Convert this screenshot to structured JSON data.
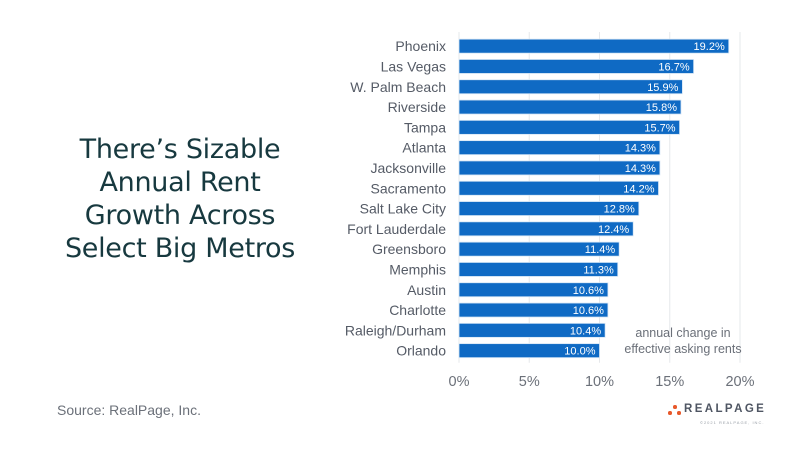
{
  "title_lines": [
    "There’s Sizable",
    "Annual Rent",
    "Growth Across",
    "Select Big Metros"
  ],
  "source": "Source: RealPage, Inc.",
  "logo": {
    "name": "REALPAGE",
    "copyright": "©2021 REALPAGE, INC.",
    "dot_color": "#e8582a"
  },
  "chart_data": {
    "type": "bar",
    "orientation": "horizontal",
    "title": "There’s Sizable Annual Rent Growth Across Select Big Metros",
    "categories": [
      "Phoenix",
      "Las Vegas",
      "W. Palm Beach",
      "Riverside",
      "Tampa",
      "Atlanta",
      "Jacksonville",
      "Sacramento",
      "Salt Lake City",
      "Fort Lauderdale",
      "Greensboro",
      "Memphis",
      "Austin",
      "Charlotte",
      "Raleigh/Durham",
      "Orlando"
    ],
    "values": [
      19.2,
      16.7,
      15.9,
      15.8,
      15.7,
      14.3,
      14.3,
      14.2,
      12.8,
      12.4,
      11.4,
      11.3,
      10.6,
      10.6,
      10.4,
      10.0
    ],
    "data_labels": [
      "19.2%",
      "16.7%",
      "15.9%",
      "15.8%",
      "15.7%",
      "14.3%",
      "14.3%",
      "14.2%",
      "12.8%",
      "12.4%",
      "11.4%",
      "11.3%",
      "10.6%",
      "10.6%",
      "10.4%",
      "10.0%"
    ],
    "xlabel": "",
    "ylabel": "",
    "xlim": [
      0,
      20
    ],
    "xticks": [
      0,
      5,
      10,
      15,
      20
    ],
    "xtick_labels": [
      "0%",
      "5%",
      "10%",
      "15%",
      "20%"
    ],
    "annotation": [
      "annual change in",
      "effective asking rents"
    ],
    "grid": true,
    "bar_color": "#0f6ac4"
  }
}
